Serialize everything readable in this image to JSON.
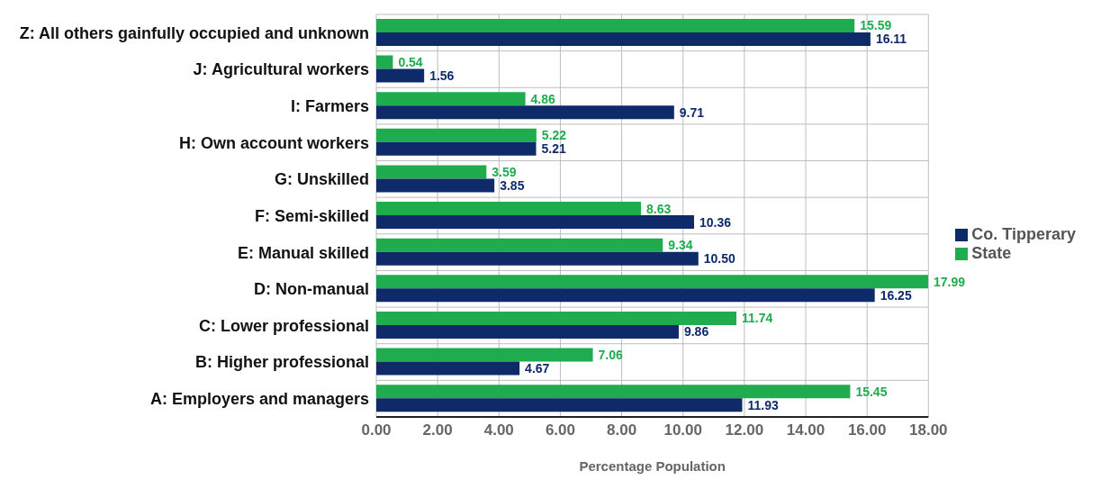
{
  "chart_data": {
    "type": "bar",
    "orientation": "horizontal",
    "xlabel": "Percentage Population",
    "categories": [
      "Z: All others gainfully occupied and unknown",
      "J: Agricultural workers",
      "I: Farmers",
      "H: Own account workers",
      "G: Unskilled",
      "F: Semi-skilled",
      "E: Manual skilled",
      "D: Non-manual",
      "C: Lower professional",
      "B: Higher professional",
      "A: Employers and managers"
    ],
    "series": [
      {
        "name": "State",
        "color": "#1fac4f",
        "values": [
          15.59,
          0.54,
          4.86,
          5.22,
          3.59,
          8.63,
          9.34,
          17.99,
          11.74,
          7.06,
          15.45
        ],
        "value_labels": [
          "15.59",
          "0.54",
          "4.86",
          "5.22",
          "3.59",
          "8.63",
          "9.34",
          "17.99",
          "11.74",
          "7.06",
          "15.45"
        ]
      },
      {
        "name": "Co. Tipperary",
        "color": "#0f2a68",
        "values": [
          16.11,
          1.56,
          9.71,
          5.21,
          3.85,
          10.36,
          10.5,
          16.25,
          9.86,
          4.67,
          11.93
        ],
        "value_labels": [
          "16.11",
          "1.56",
          "9.71",
          "5.21",
          "3.85",
          "10.36",
          "10.50",
          "16.25",
          "9.86",
          "4.67",
          "11.93"
        ]
      }
    ],
    "xlim": [
      0,
      18
    ],
    "xticks": [
      {
        "value": 0,
        "label": "0.00"
      },
      {
        "value": 2,
        "label": "2.00"
      },
      {
        "value": 4,
        "label": "4.00"
      },
      {
        "value": 6,
        "label": "6.00"
      },
      {
        "value": 8,
        "label": "8.00"
      },
      {
        "value": 10,
        "label": "10.00"
      },
      {
        "value": 12,
        "label": "12.00"
      },
      {
        "value": 14,
        "label": "14.00"
      },
      {
        "value": 16,
        "label": "16.00"
      },
      {
        "value": 18,
        "label": "18.00"
      }
    ],
    "grid": true,
    "legend": "right"
  }
}
